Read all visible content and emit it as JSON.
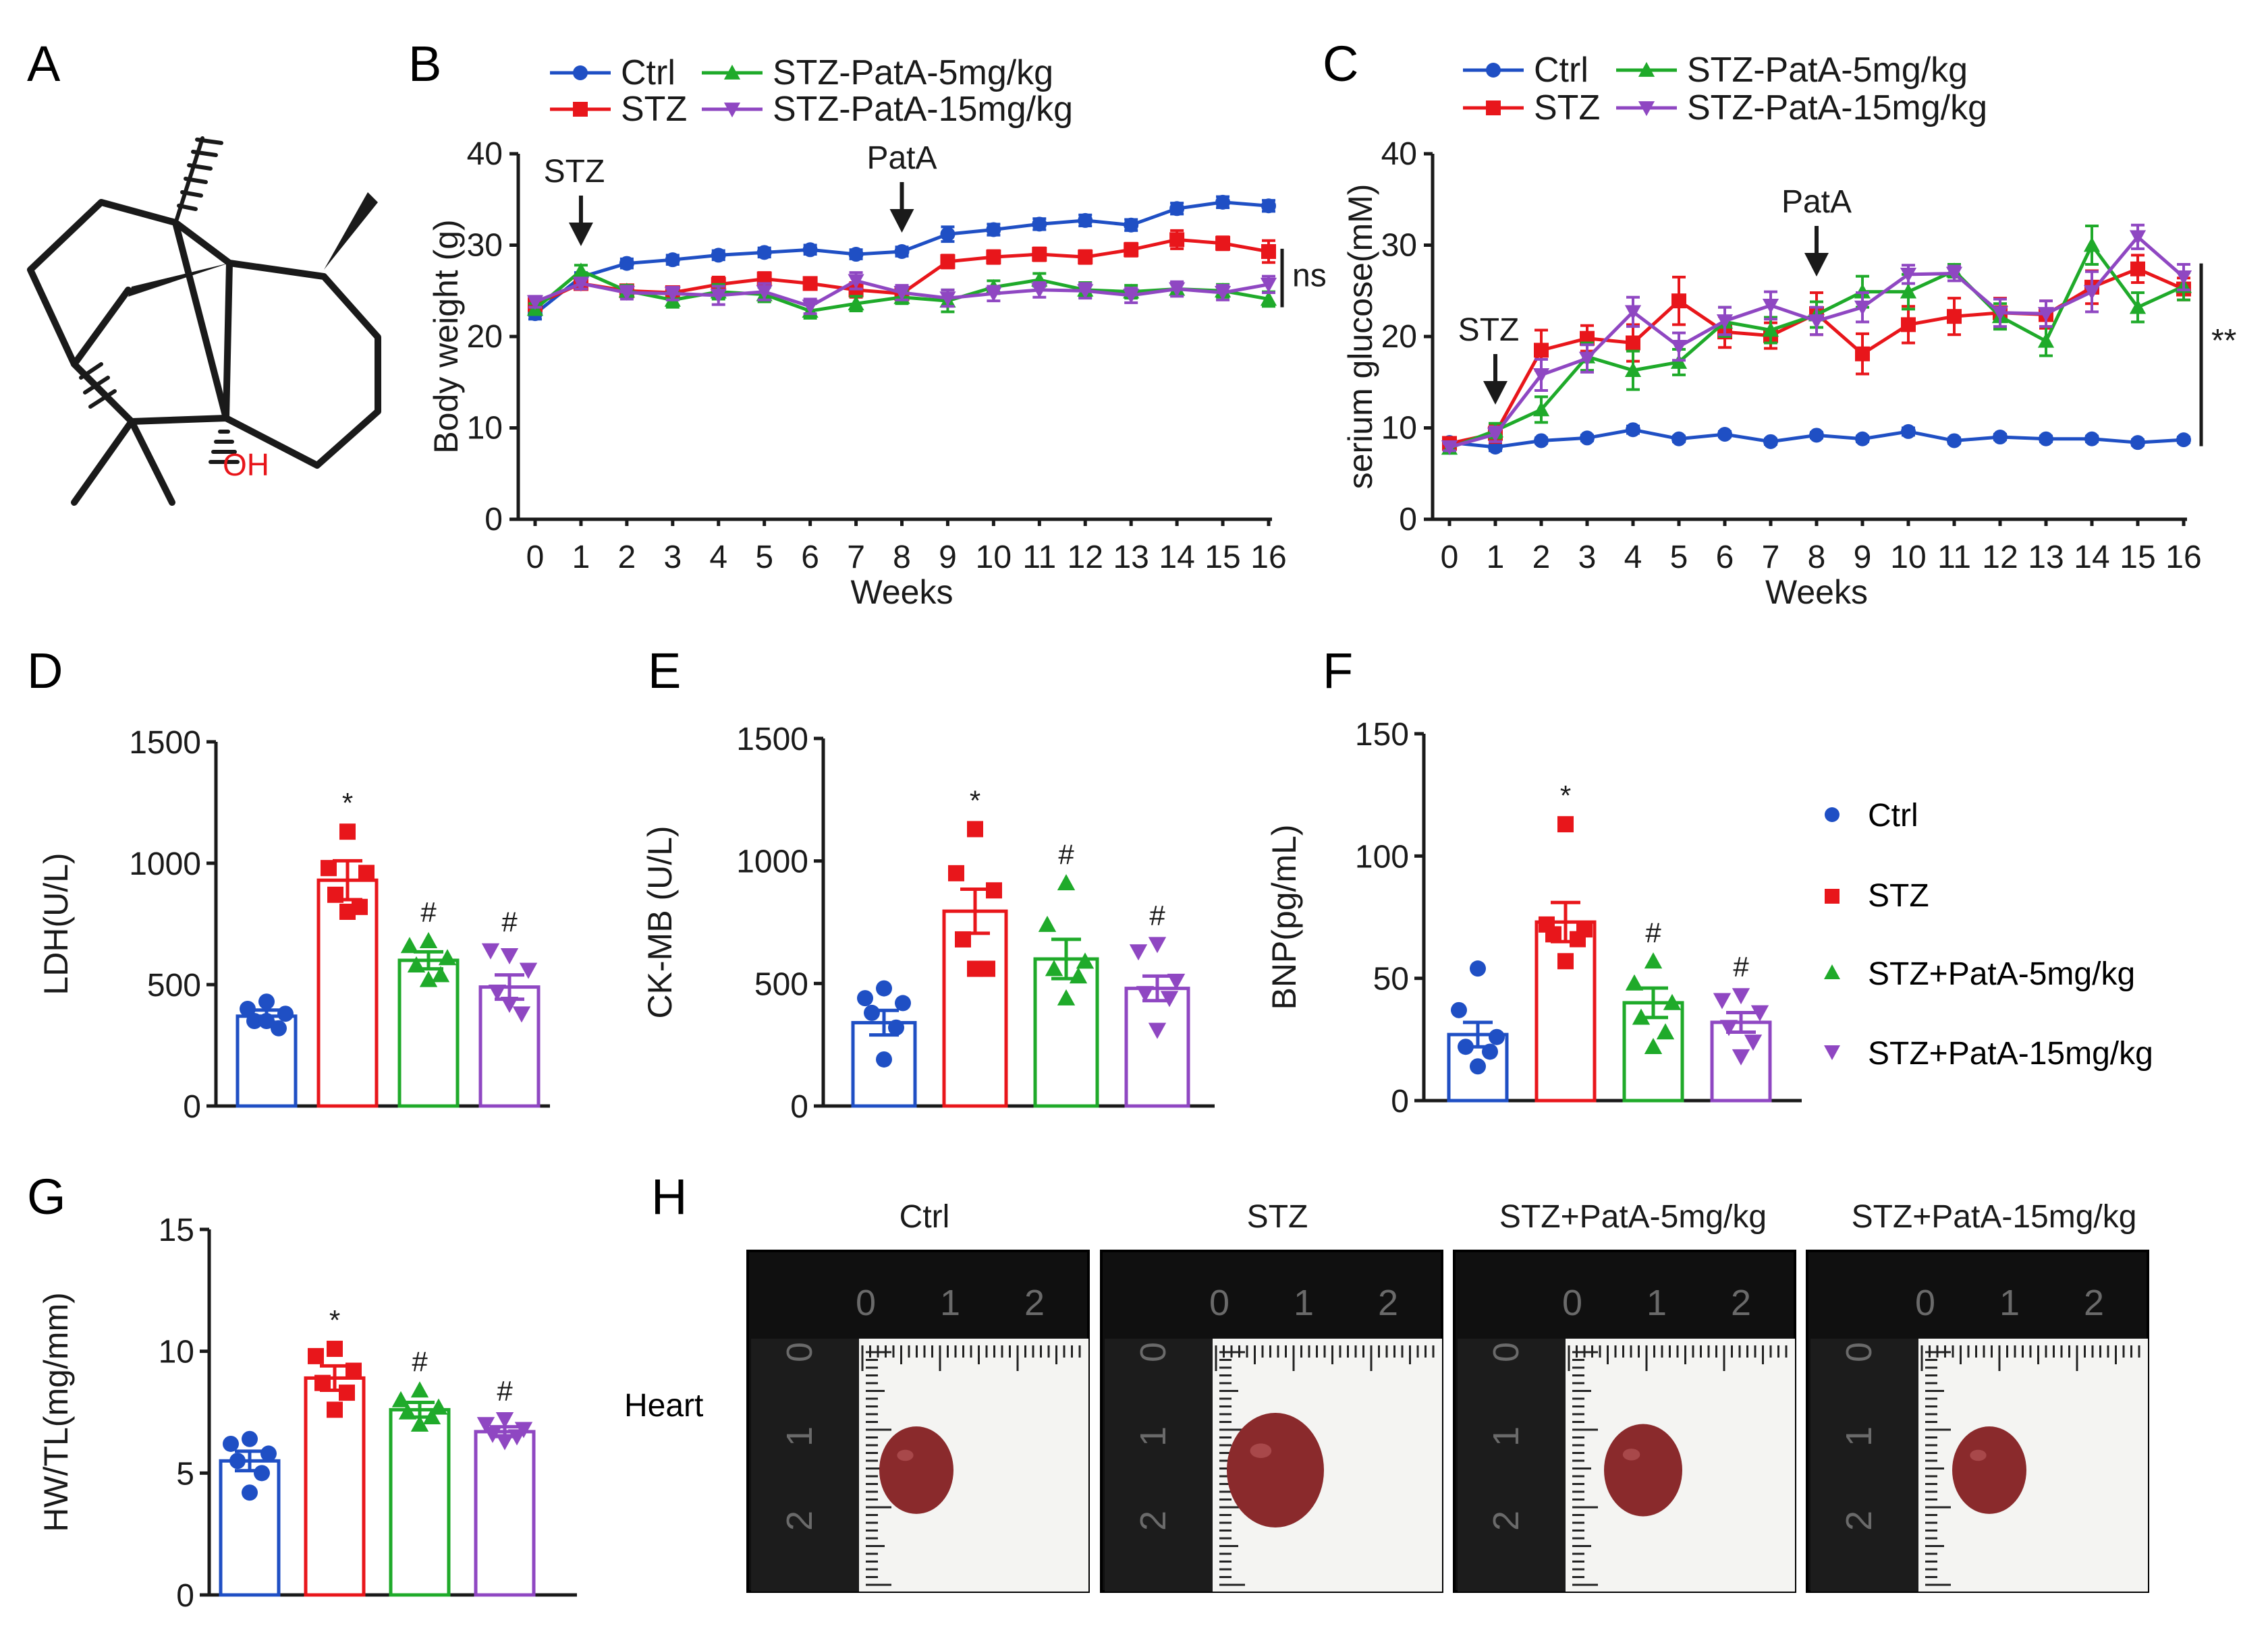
{
  "colors": {
    "ctrl": "#1f4fc4",
    "stz": "#e8161b",
    "pata5": "#1faa2a",
    "pata15": "#8f47c2",
    "text": "#1a1a1a",
    "photo_bg": "#101010",
    "paper": "#f4f4f2",
    "heart": "#8a2a2c"
  },
  "panel_labels": {
    "A": "A",
    "B": "B",
    "C": "C",
    "D": "D",
    "E": "E",
    "F": "F",
    "G": "G",
    "H": "H"
  },
  "structure": {
    "oh_label": "OH"
  },
  "line_legend": {
    "ctrl": "Ctrl",
    "stz": "STZ",
    "pata5": "STZ-PatA-5mg/kg",
    "pata15": "STZ-PatA-15mg/kg"
  },
  "bar_legend": {
    "ctrl": "Ctrl",
    "stz": "STZ",
    "pata5": "STZ+PatA-5mg/kg",
    "pata15": "STZ+PatA-15mg/kg"
  },
  "photo_panel": {
    "row_label": "Heart",
    "titles": [
      "Ctrl",
      "STZ",
      "STZ+PatA-5mg/kg",
      "STZ+PatA-15mg/kg"
    ],
    "ruler_numbers": [
      "0",
      "1",
      "2"
    ]
  },
  "chart_data": [
    {
      "panel": "B",
      "type": "line",
      "xlabel": "Weeks",
      "ylabel": "Body weight (g)",
      "x": [
        0,
        1,
        2,
        3,
        4,
        5,
        6,
        7,
        8,
        9,
        10,
        11,
        12,
        13,
        14,
        15,
        16
      ],
      "ylim": [
        0,
        40
      ],
      "yticks": [
        0,
        10,
        20,
        30,
        40
      ],
      "grid": false,
      "legend": "top",
      "annotations": [
        {
          "text": "STZ",
          "x": 1
        },
        {
          "text": "PatA",
          "x": 8
        }
      ],
      "significance": "ns",
      "series": [
        {
          "name": "Ctrl",
          "values": [
            22.5,
            26.5,
            28,
            28.4,
            28.9,
            29.2,
            29.5,
            29,
            29.3,
            31.2,
            31.7,
            32.3,
            32.7,
            32.2,
            34,
            34.7,
            34.3
          ],
          "err": [
            0.6,
            0.5,
            0.5,
            0.5,
            0.5,
            0.5,
            0.5,
            0.5,
            0.5,
            0.8,
            0.6,
            0.6,
            0.6,
            0.6,
            0.6,
            0.6,
            0.6
          ]
        },
        {
          "name": "STZ",
          "values": [
            23.5,
            25.8,
            25,
            24.8,
            25.7,
            26.3,
            25.8,
            25.1,
            24.7,
            28.2,
            28.7,
            29,
            28.7,
            29.5,
            30.6,
            30.2,
            29.3
          ],
          "err": [
            0.6,
            0.6,
            0.6,
            0.6,
            0.8,
            0.7,
            0.6,
            0.8,
            0.8,
            0.7,
            0.7,
            0.7,
            0.7,
            0.7,
            1.0,
            0.7,
            1.2
          ]
        },
        {
          "name": "STZ-PatA-5mg/kg",
          "values": [
            23,
            27.2,
            25,
            24,
            24.9,
            24.6,
            22.8,
            23.6,
            24.3,
            23.9,
            25.4,
            26.2,
            25.1,
            24.9,
            25.2,
            25,
            24.1
          ],
          "err": [
            0.6,
            0.6,
            0.6,
            0.8,
            0.8,
            0.8,
            0.8,
            0.8,
            0.7,
            1.2,
            0.7,
            0.7,
            0.8,
            0.7,
            0.7,
            0.7,
            0.8
          ]
        },
        {
          "name": "STZ-PatA-15mg/kg",
          "values": [
            23.8,
            25.8,
            24.8,
            24.7,
            24.5,
            24.9,
            23.3,
            26.1,
            24.8,
            24.2,
            24.7,
            25.1,
            25,
            24.5,
            25.2,
            24.8,
            25.7
          ],
          "err": [
            0.6,
            0.6,
            0.7,
            0.7,
            1.0,
            0.9,
            0.8,
            0.9,
            0.8,
            0.9,
            0.8,
            0.8,
            0.8,
            0.8,
            0.8,
            0.8,
            0.9
          ]
        }
      ]
    },
    {
      "panel": "C",
      "type": "line",
      "xlabel": "Weeks",
      "ylabel": "serium glucose(mM)",
      "x": [
        0,
        1,
        2,
        3,
        4,
        5,
        6,
        7,
        8,
        9,
        10,
        11,
        12,
        13,
        14,
        15,
        16
      ],
      "ylim": [
        0,
        40
      ],
      "yticks": [
        0,
        10,
        20,
        30,
        40
      ],
      "grid": false,
      "legend": "top",
      "annotations": [
        {
          "text": "STZ",
          "x": 1
        },
        {
          "text": "PatA",
          "x": 8
        }
      ],
      "significance": "**",
      "series": [
        {
          "name": "Ctrl",
          "values": [
            8.4,
            7.9,
            8.6,
            8.9,
            9.8,
            8.8,
            9.3,
            8.5,
            9.2,
            8.8,
            9.6,
            8.6,
            9,
            8.8,
            8.8,
            8.4,
            8.7
          ],
          "err": [
            0.4,
            0.4,
            0.3,
            0.3,
            0.4,
            0.3,
            0.3,
            0.3,
            0.3,
            0.3,
            0.4,
            0.3,
            0.3,
            0.3,
            0.3,
            0.3,
            0.3
          ]
        },
        {
          "name": "STZ",
          "values": [
            8.3,
            9.4,
            18.5,
            19.8,
            19.3,
            23.9,
            20.5,
            20.1,
            22.5,
            18.1,
            21.3,
            22.2,
            22.6,
            22.4,
            25.4,
            27.4,
            25.2
          ],
          "err": [
            0.5,
            1.0,
            2.2,
            1.4,
            2.0,
            2.6,
            1.7,
            1.4,
            2.3,
            2.2,
            2.0,
            2.0,
            1.6,
            1.5,
            1.8,
            1.5,
            1.2
          ]
        },
        {
          "name": "STZ-PatA-5mg/kg",
          "values": [
            7.8,
            9.7,
            12,
            17.8,
            16.3,
            17.2,
            21.6,
            20.7,
            22.4,
            24.9,
            24.9,
            27.2,
            22.2,
            19.5,
            30,
            23.2,
            25.5
          ],
          "err": [
            0.5,
            0.8,
            1.4,
            1.5,
            2.1,
            1.4,
            1.6,
            1.4,
            1.4,
            1.7,
            1.9,
            0.7,
            1.4,
            1.6,
            2.1,
            1.6,
            1.5
          ]
        },
        {
          "name": "STZ-PatA-15mg/kg",
          "values": [
            7.9,
            9.3,
            15.8,
            17.6,
            22.7,
            18.9,
            21.7,
            23.4,
            21.7,
            23.2,
            26.8,
            26.9,
            22.6,
            22.5,
            24.9,
            30.9,
            26.5
          ],
          "err": [
            0.4,
            0.8,
            1.7,
            1.5,
            1.6,
            1.5,
            1.5,
            1.5,
            1.5,
            1.6,
            1.0,
            0.8,
            1.5,
            1.4,
            2.2,
            1.3,
            1.4
          ]
        }
      ]
    },
    {
      "panel": "D",
      "type": "bar",
      "ylabel": "LDH(U/L)",
      "ylim": [
        0,
        1500
      ],
      "yticks": [
        0,
        500,
        1000,
        1500
      ],
      "categories": [
        "Ctrl",
        "STZ",
        "STZ+PatA-5mg/kg",
        "STZ+PatA-15mg/kg"
      ],
      "values": [
        370,
        930,
        600,
        490
      ],
      "err": [
        25,
        80,
        35,
        50
      ],
      "sig": [
        "",
        "*",
        "#",
        "#"
      ],
      "points": [
        [
          430,
          400,
          380,
          350,
          320,
          350
        ],
        [
          1130,
          980,
          960,
          870,
          820,
          800
        ],
        [
          680,
          660,
          610,
          580,
          540,
          520
        ],
        [
          620,
          640,
          560,
          470,
          380,
          420
        ]
      ]
    },
    {
      "panel": "E",
      "type": "bar",
      "ylabel": "CK-MB (U/L)",
      "ylim": [
        0,
        1500
      ],
      "yticks": [
        0,
        500,
        1000,
        1500
      ],
      "categories": [
        "Ctrl",
        "STZ",
        "STZ+PatA-5mg/kg",
        "STZ+PatA-15mg/kg"
      ],
      "values": [
        340,
        795,
        600,
        480
      ],
      "err": [
        50,
        90,
        80,
        50
      ],
      "sig": [
        "",
        "*",
        "#",
        "#"
      ],
      "points": [
        [
          480,
          440,
          420,
          380,
          320,
          190
        ],
        [
          1130,
          950,
          880,
          680,
          560,
          560
        ],
        [
          910,
          740,
          590,
          560,
          530,
          440
        ],
        [
          660,
          630,
          510,
          460,
          440,
          310
        ]
      ]
    },
    {
      "panel": "F",
      "type": "bar",
      "ylabel": "BNP(pg/mL)",
      "ylim": [
        0,
        150
      ],
      "yticks": [
        0,
        50,
        100,
        150
      ],
      "categories": [
        "Ctrl",
        "STZ",
        "STZ+PatA-5mg/kg",
        "STZ+PatA-15mg/kg"
      ],
      "values": [
        27,
        73,
        40,
        32
      ],
      "err": [
        5,
        8,
        6,
        4
      ],
      "sig": [
        "",
        "*",
        "#",
        "#"
      ],
      "points": [
        [
          54,
          37,
          26,
          22,
          20,
          14
        ],
        [
          113,
          72,
          70,
          68,
          66,
          57
        ],
        [
          57,
          48,
          40,
          34,
          28,
          22
        ],
        [
          43,
          41,
          36,
          30,
          24,
          18
        ]
      ]
    },
    {
      "panel": "G",
      "type": "bar",
      "ylabel": "HW/TL(mg/mm)",
      "ylim": [
        0,
        15
      ],
      "yticks": [
        0,
        5,
        10,
        15
      ],
      "categories": [
        "Ctrl",
        "STZ",
        "STZ+PatA-5mg/kg",
        "STZ+PatA-15mg/kg"
      ],
      "values": [
        5.5,
        8.9,
        7.6,
        6.7
      ],
      "err": [
        0.4,
        0.5,
        0.3,
        0.2
      ],
      "sig": [
        "",
        "*",
        "#",
        "#"
      ],
      "points": [
        [
          6.4,
          6.2,
          5.8,
          5.5,
          5.0,
          4.2
        ],
        [
          10.1,
          9.8,
          9.2,
          8.7,
          8.3,
          7.6
        ],
        [
          8.4,
          8.0,
          7.7,
          7.5,
          7.3,
          7.0
        ],
        [
          7.2,
          7.0,
          6.8,
          6.6,
          6.5,
          6.3
        ]
      ]
    }
  ]
}
